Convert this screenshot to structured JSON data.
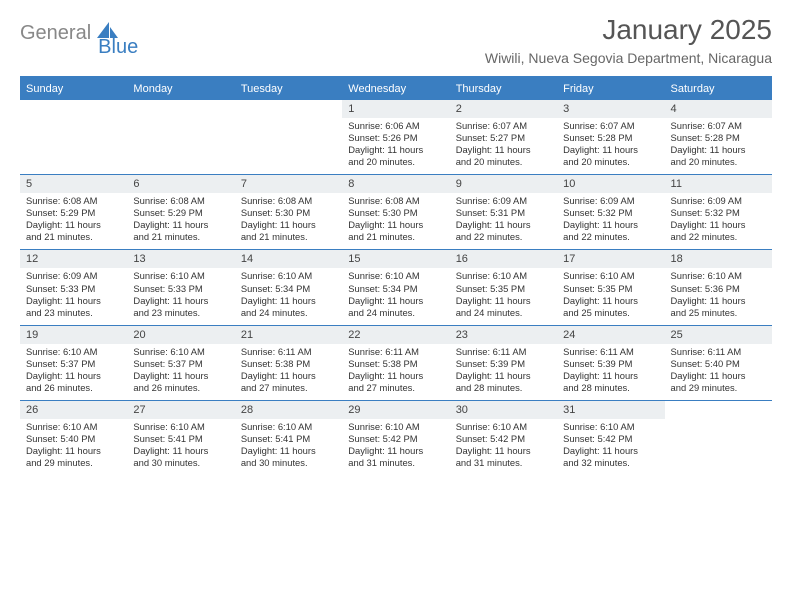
{
  "logo": {
    "word1": "General",
    "word2": "Blue",
    "color_gray": "#888888",
    "color_blue": "#3a7ec1"
  },
  "title": "January 2025",
  "location": "Wiwili, Nueva Segovia Department, Nicaragua",
  "colors": {
    "header_bg": "#3a7ec1",
    "header_text": "#ffffff",
    "daynum_bg": "#eceff1",
    "rule": "#3a7ec1",
    "body_text": "#333333"
  },
  "day_names": [
    "Sunday",
    "Monday",
    "Tuesday",
    "Wednesday",
    "Thursday",
    "Friday",
    "Saturday"
  ],
  "weeks": [
    [
      {
        "num": "",
        "lines": []
      },
      {
        "num": "",
        "lines": []
      },
      {
        "num": "",
        "lines": []
      },
      {
        "num": "1",
        "lines": [
          "Sunrise: 6:06 AM",
          "Sunset: 5:26 PM",
          "Daylight: 11 hours",
          "and 20 minutes."
        ]
      },
      {
        "num": "2",
        "lines": [
          "Sunrise: 6:07 AM",
          "Sunset: 5:27 PM",
          "Daylight: 11 hours",
          "and 20 minutes."
        ]
      },
      {
        "num": "3",
        "lines": [
          "Sunrise: 6:07 AM",
          "Sunset: 5:28 PM",
          "Daylight: 11 hours",
          "and 20 minutes."
        ]
      },
      {
        "num": "4",
        "lines": [
          "Sunrise: 6:07 AM",
          "Sunset: 5:28 PM",
          "Daylight: 11 hours",
          "and 20 minutes."
        ]
      }
    ],
    [
      {
        "num": "5",
        "lines": [
          "Sunrise: 6:08 AM",
          "Sunset: 5:29 PM",
          "Daylight: 11 hours",
          "and 21 minutes."
        ]
      },
      {
        "num": "6",
        "lines": [
          "Sunrise: 6:08 AM",
          "Sunset: 5:29 PM",
          "Daylight: 11 hours",
          "and 21 minutes."
        ]
      },
      {
        "num": "7",
        "lines": [
          "Sunrise: 6:08 AM",
          "Sunset: 5:30 PM",
          "Daylight: 11 hours",
          "and 21 minutes."
        ]
      },
      {
        "num": "8",
        "lines": [
          "Sunrise: 6:08 AM",
          "Sunset: 5:30 PM",
          "Daylight: 11 hours",
          "and 21 minutes."
        ]
      },
      {
        "num": "9",
        "lines": [
          "Sunrise: 6:09 AM",
          "Sunset: 5:31 PM",
          "Daylight: 11 hours",
          "and 22 minutes."
        ]
      },
      {
        "num": "10",
        "lines": [
          "Sunrise: 6:09 AM",
          "Sunset: 5:32 PM",
          "Daylight: 11 hours",
          "and 22 minutes."
        ]
      },
      {
        "num": "11",
        "lines": [
          "Sunrise: 6:09 AM",
          "Sunset: 5:32 PM",
          "Daylight: 11 hours",
          "and 22 minutes."
        ]
      }
    ],
    [
      {
        "num": "12",
        "lines": [
          "Sunrise: 6:09 AM",
          "Sunset: 5:33 PM",
          "Daylight: 11 hours",
          "and 23 minutes."
        ]
      },
      {
        "num": "13",
        "lines": [
          "Sunrise: 6:10 AM",
          "Sunset: 5:33 PM",
          "Daylight: 11 hours",
          "and 23 minutes."
        ]
      },
      {
        "num": "14",
        "lines": [
          "Sunrise: 6:10 AM",
          "Sunset: 5:34 PM",
          "Daylight: 11 hours",
          "and 24 minutes."
        ]
      },
      {
        "num": "15",
        "lines": [
          "Sunrise: 6:10 AM",
          "Sunset: 5:34 PM",
          "Daylight: 11 hours",
          "and 24 minutes."
        ]
      },
      {
        "num": "16",
        "lines": [
          "Sunrise: 6:10 AM",
          "Sunset: 5:35 PM",
          "Daylight: 11 hours",
          "and 24 minutes."
        ]
      },
      {
        "num": "17",
        "lines": [
          "Sunrise: 6:10 AM",
          "Sunset: 5:35 PM",
          "Daylight: 11 hours",
          "and 25 minutes."
        ]
      },
      {
        "num": "18",
        "lines": [
          "Sunrise: 6:10 AM",
          "Sunset: 5:36 PM",
          "Daylight: 11 hours",
          "and 25 minutes."
        ]
      }
    ],
    [
      {
        "num": "19",
        "lines": [
          "Sunrise: 6:10 AM",
          "Sunset: 5:37 PM",
          "Daylight: 11 hours",
          "and 26 minutes."
        ]
      },
      {
        "num": "20",
        "lines": [
          "Sunrise: 6:10 AM",
          "Sunset: 5:37 PM",
          "Daylight: 11 hours",
          "and 26 minutes."
        ]
      },
      {
        "num": "21",
        "lines": [
          "Sunrise: 6:11 AM",
          "Sunset: 5:38 PM",
          "Daylight: 11 hours",
          "and 27 minutes."
        ]
      },
      {
        "num": "22",
        "lines": [
          "Sunrise: 6:11 AM",
          "Sunset: 5:38 PM",
          "Daylight: 11 hours",
          "and 27 minutes."
        ]
      },
      {
        "num": "23",
        "lines": [
          "Sunrise: 6:11 AM",
          "Sunset: 5:39 PM",
          "Daylight: 11 hours",
          "and 28 minutes."
        ]
      },
      {
        "num": "24",
        "lines": [
          "Sunrise: 6:11 AM",
          "Sunset: 5:39 PM",
          "Daylight: 11 hours",
          "and 28 minutes."
        ]
      },
      {
        "num": "25",
        "lines": [
          "Sunrise: 6:11 AM",
          "Sunset: 5:40 PM",
          "Daylight: 11 hours",
          "and 29 minutes."
        ]
      }
    ],
    [
      {
        "num": "26",
        "lines": [
          "Sunrise: 6:10 AM",
          "Sunset: 5:40 PM",
          "Daylight: 11 hours",
          "and 29 minutes."
        ]
      },
      {
        "num": "27",
        "lines": [
          "Sunrise: 6:10 AM",
          "Sunset: 5:41 PM",
          "Daylight: 11 hours",
          "and 30 minutes."
        ]
      },
      {
        "num": "28",
        "lines": [
          "Sunrise: 6:10 AM",
          "Sunset: 5:41 PM",
          "Daylight: 11 hours",
          "and 30 minutes."
        ]
      },
      {
        "num": "29",
        "lines": [
          "Sunrise: 6:10 AM",
          "Sunset: 5:42 PM",
          "Daylight: 11 hours",
          "and 31 minutes."
        ]
      },
      {
        "num": "30",
        "lines": [
          "Sunrise: 6:10 AM",
          "Sunset: 5:42 PM",
          "Daylight: 11 hours",
          "and 31 minutes."
        ]
      },
      {
        "num": "31",
        "lines": [
          "Sunrise: 6:10 AM",
          "Sunset: 5:42 PM",
          "Daylight: 11 hours",
          "and 32 minutes."
        ]
      },
      {
        "num": "",
        "lines": []
      }
    ]
  ]
}
